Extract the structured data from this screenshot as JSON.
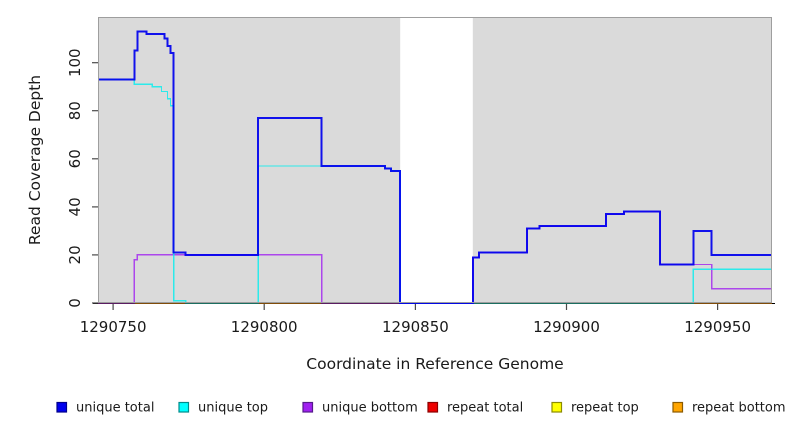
{
  "figure": {
    "background": "#ffffff",
    "panel_background": "#dadada",
    "panel_border_color": "#9e9e9e",
    "axis_line_color": "#000000",
    "tick_color": "#4a4a4a",
    "text_color": "#1a1a1a"
  },
  "chart_data": {
    "type": "line",
    "subtype": "step-coverage",
    "title": "",
    "xlabel": "Coordinate in Reference Genome",
    "ylabel": "Read Coverage Depth",
    "x_ticks": [
      1290750,
      1290800,
      1290850,
      1290900,
      1290950
    ],
    "y_ticks": [
      0,
      20,
      40,
      60,
      80,
      100
    ],
    "xlim": [
      1290745,
      1290968
    ],
    "ylim": [
      0,
      119
    ],
    "grid": false,
    "legend_position": "bottom",
    "gap_region": {
      "x_start": 1290845,
      "x_end": 1290869,
      "color": "#ffffff",
      "meaning": "no-data white band"
    },
    "series": [
      {
        "name": "unique total",
        "color": "#0000EE",
        "width": 2,
        "opacity": 0.92,
        "points": [
          [
            1290745,
            93
          ],
          [
            1290757,
            105
          ],
          [
            1290758,
            113
          ],
          [
            1290761,
            112
          ],
          [
            1290767,
            110
          ],
          [
            1290768,
            107
          ],
          [
            1290769,
            104
          ],
          [
            1290770,
            21
          ],
          [
            1290774,
            20
          ],
          [
            1290798,
            77
          ],
          [
            1290819,
            57
          ],
          [
            1290840,
            56
          ],
          [
            1290842,
            55
          ],
          [
            1290845,
            0
          ],
          [
            1290869,
            19
          ],
          [
            1290871,
            21
          ],
          [
            1290887,
            31
          ],
          [
            1290891,
            32
          ],
          [
            1290913,
            37
          ],
          [
            1290919,
            38
          ],
          [
            1290931,
            16
          ],
          [
            1290942,
            30
          ],
          [
            1290948,
            20
          ]
        ]
      },
      {
        "name": "unique top",
        "color": "#00EEEE",
        "width": 1.4,
        "opacity": 0.8,
        "points": [
          [
            1290745,
            93
          ],
          [
            1290757,
            91
          ],
          [
            1290763,
            90
          ],
          [
            1290766,
            88
          ],
          [
            1290768,
            85
          ],
          [
            1290769,
            82
          ],
          [
            1290770,
            1
          ],
          [
            1290774,
            0
          ],
          [
            1290798,
            57
          ],
          [
            1290840,
            56
          ],
          [
            1290842,
            55
          ],
          [
            1290845,
            0
          ],
          [
            1290942,
            14
          ]
        ]
      },
      {
        "name": "unique bottom",
        "color": "#A020F0",
        "width": 1.4,
        "opacity": 0.8,
        "points": [
          [
            1290745,
            0
          ],
          [
            1290757,
            18
          ],
          [
            1290758,
            20
          ],
          [
            1290819,
            0
          ],
          [
            1290869,
            19
          ],
          [
            1290871,
            21
          ],
          [
            1290887,
            31
          ],
          [
            1290891,
            32
          ],
          [
            1290913,
            37
          ],
          [
            1290919,
            38
          ],
          [
            1290931,
            16
          ],
          [
            1290948,
            6
          ]
        ]
      },
      {
        "name": "repeat total",
        "color": "#EE0000",
        "width": 1.2,
        "opacity": 0.9,
        "points": [
          [
            1290745,
            0
          ]
        ]
      },
      {
        "name": "repeat top",
        "color": "#FFFF00",
        "width": 1.2,
        "opacity": 0.9,
        "points": [
          [
            1290745,
            0
          ]
        ]
      },
      {
        "name": "repeat bottom",
        "color": "#FF9912",
        "width": 1.4,
        "opacity": 1,
        "points": [
          [
            1290745,
            0
          ]
        ]
      }
    ],
    "draw_order": [
      3,
      4,
      5,
      2,
      1,
      0
    ],
    "legend": [
      {
        "label": "unique total",
        "fill": "#0000EE",
        "border": "#00008B"
      },
      {
        "label": "unique top",
        "fill": "#00FFFF",
        "border": "#008B8B"
      },
      {
        "label": "unique bottom",
        "fill": "#A020F0",
        "border": "#551A8B"
      },
      {
        "label": "repeat total",
        "fill": "#EE0000",
        "border": "#8B0000"
      },
      {
        "label": "repeat top",
        "fill": "#FFFF00",
        "border": "#8B8B00"
      },
      {
        "label": "repeat bottom",
        "fill": "#FFA500",
        "border": "#8B5A00"
      }
    ]
  }
}
